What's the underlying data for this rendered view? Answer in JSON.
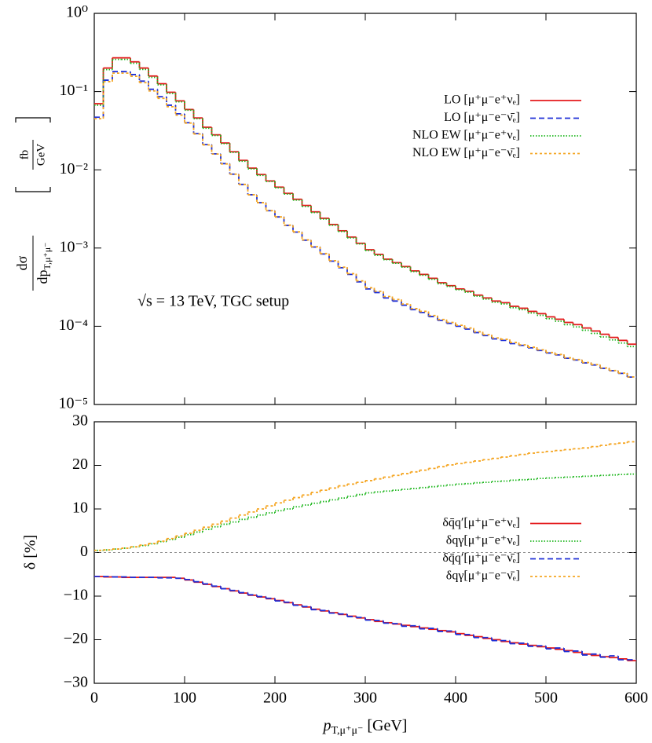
{
  "chart_data": [
    {
      "type": "histogram",
      "log_y": true,
      "ylabel": {
        "numerator": "dσ",
        "denominator": "dp",
        "subscript": "T,μ⁺μ⁻",
        "unit_numerator": "fb",
        "unit_denominator": "GeV"
      },
      "annotation": "√s = 13 TeV, TGC setup",
      "legend": "upper right",
      "xlim": [
        0,
        600
      ],
      "ylim": [
        1e-05,
        1
      ],
      "yticks": [
        {
          "value": 1e-05,
          "label": "10⁻⁵"
        },
        {
          "value": 0.0001,
          "label": "10⁻⁴"
        },
        {
          "value": 0.001,
          "label": "10⁻³"
        },
        {
          "value": 0.01,
          "label": "10⁻²"
        },
        {
          "value": 0.1,
          "label": "10⁻¹"
        },
        {
          "value": 1,
          "label": "10⁰"
        }
      ],
      "bins": [
        0,
        10,
        20,
        30,
        40,
        50,
        60,
        70,
        80,
        90,
        100,
        110,
        120,
        130,
        140,
        150,
        160,
        170,
        180,
        190,
        200,
        210,
        220,
        230,
        240,
        250,
        260,
        270,
        280,
        290,
        300,
        310,
        320,
        330,
        340,
        350,
        360,
        370,
        380,
        390,
        400,
        410,
        420,
        430,
        440,
        450,
        460,
        470,
        480,
        490,
        500,
        510,
        520,
        530,
        540,
        550,
        560,
        570,
        580,
        590,
        600
      ],
      "series": [
        {
          "name": "LO  [μ⁺μ⁻e⁺νₑ]",
          "color": "#e41a1c",
          "style": "solid",
          "values": [
            0.07,
            0.2,
            0.27,
            0.27,
            0.24,
            0.2,
            0.158,
            0.126,
            0.098,
            0.076,
            0.059,
            0.046,
            0.035,
            0.028,
            0.022,
            0.017,
            0.0132,
            0.0105,
            0.0087,
            0.0072,
            0.006,
            0.005,
            0.0042,
            0.0035,
            0.0029,
            0.0024,
            0.002,
            0.00166,
            0.00138,
            0.00115,
            0.00095,
            0.00083,
            0.00072,
            0.00065,
            0.00058,
            0.00051,
            0.00046,
            0.00041,
            0.00036,
            0.00033,
            0.0003,
            0.00028,
            0.00025,
            0.00023,
            0.00021,
            0.0002,
            0.00018,
            0.00017,
            0.000155,
            0.000145,
            0.000132,
            0.000123,
            0.000112,
            0.000105,
            9.5e-05,
            8.7e-05,
            7.9e-05,
            7.2e-05,
            6.6e-05,
            5.9e-05
          ]
        },
        {
          "name": "LO  [μ⁺μ⁻e⁻ν̄ₑ]",
          "color": "#1f2fd6",
          "style": "dashed",
          "values": [
            0.047,
            0.14,
            0.18,
            0.18,
            0.165,
            0.136,
            0.107,
            0.086,
            0.067,
            0.052,
            0.04,
            0.029,
            0.021,
            0.016,
            0.012,
            0.0088,
            0.0065,
            0.0048,
            0.0038,
            0.003,
            0.0025,
            0.00195,
            0.0016,
            0.00126,
            0.00103,
            0.00084,
            0.00068,
            0.00056,
            0.00046,
            0.00037,
            0.0003,
            0.00027,
            0.00023,
            0.00021,
            0.000186,
            0.000163,
            0.00015,
            0.000133,
            0.000119,
            0.000109,
            0.0001,
            9.2e-05,
            8.3e-05,
            7.6e-05,
            6.9e-05,
            6.6e-05,
            6e-05,
            5.7e-05,
            5.3e-05,
            4.9e-05,
            4.55e-05,
            4.3e-05,
            3.9e-05,
            3.7e-05,
            3.4e-05,
            3.2e-05,
            2.9e-05,
            2.7e-05,
            2.5e-05,
            2.24e-05
          ]
        },
        {
          "name": "NLO EW  [μ⁺μ⁻e⁺νₑ]",
          "color": "#22b822",
          "style": "dotted",
          "values": [
            0.067,
            0.191,
            0.258,
            0.258,
            0.23,
            0.192,
            0.152,
            0.122,
            0.095,
            0.074,
            0.058,
            0.045,
            0.034,
            0.0275,
            0.0216,
            0.0167,
            0.0129,
            0.0103,
            0.0085,
            0.0071,
            0.0059,
            0.0049,
            0.0041,
            0.0034,
            0.00284,
            0.00235,
            0.00196,
            0.00163,
            0.00135,
            0.00113,
            0.00093,
            0.00081,
            0.00071,
            0.00064,
            0.00057,
            0.0005,
            0.00045,
            0.0004,
            0.00035,
            0.000324,
            0.000293,
            0.000273,
            0.000243,
            0.000223,
            0.000203,
            0.000193,
            0.000173,
            0.000163,
            0.000148,
            0.000138,
            0.000125,
            0.000116,
            0.000105,
            9.8e-05,
            8.9e-05,
            8.1e-05,
            7.3e-05,
            6.7e-05,
            6.1e-05,
            5.5e-05
          ]
        },
        {
          "name": "NLO EW  [μ⁺μ⁻e⁻ν̄ₑ]",
          "color": "#f5a623",
          "style": "dotted-coarse",
          "values": [
            0.045,
            0.134,
            0.172,
            0.172,
            0.157,
            0.13,
            0.102,
            0.082,
            0.064,
            0.05,
            0.0396,
            0.0287,
            0.0208,
            0.0159,
            0.0119,
            0.0088,
            0.0065,
            0.0048,
            0.0038,
            0.003,
            0.0025,
            0.00196,
            0.00161,
            0.00127,
            0.00104,
            0.00085,
            0.00069,
            0.00057,
            0.00047,
            0.00038,
            0.00031,
            0.00028,
            0.00024,
            0.00022,
            0.000192,
            0.000168,
            0.000155,
            0.000137,
            0.000122,
            0.000112,
            0.000103,
            9.5e-05,
            8.5e-05,
            7.8e-05,
            7.1e-05,
            6.8e-05,
            6.2e-05,
            5.8e-05,
            5.4e-05,
            5e-05,
            4.62e-05,
            4.36e-05,
            3.95e-05,
            3.75e-05,
            3.44e-05,
            3.23e-05,
            2.93e-05,
            2.72e-05,
            2.52e-05,
            2.25e-05
          ]
        }
      ]
    },
    {
      "type": "histogram",
      "log_y": false,
      "ylabel": "δ [%]",
      "xlabel": {
        "symbol": "p",
        "subscript": "T,μ⁺μ⁻",
        "unit": " [GeV]"
      },
      "legend": "center right",
      "zero_line": true,
      "xlim": [
        0,
        600
      ],
      "xticks": [
        0,
        100,
        200,
        300,
        400,
        500,
        600
      ],
      "ylim": [
        -30,
        30
      ],
      "yticks": [
        {
          "value": -30,
          "label": "−30"
        },
        {
          "value": -20,
          "label": "−20"
        },
        {
          "value": -10,
          "label": "−10"
        },
        0,
        10,
        20,
        30
      ],
      "bins": [
        0,
        10,
        20,
        30,
        40,
        50,
        60,
        70,
        80,
        90,
        100,
        110,
        120,
        130,
        140,
        150,
        160,
        170,
        180,
        190,
        200,
        210,
        220,
        230,
        240,
        250,
        260,
        270,
        280,
        290,
        300,
        310,
        320,
        330,
        340,
        350,
        360,
        370,
        380,
        390,
        400,
        410,
        420,
        430,
        440,
        450,
        460,
        470,
        480,
        490,
        500,
        510,
        520,
        530,
        540,
        550,
        560,
        570,
        580,
        590,
        600
      ],
      "series": [
        {
          "name": "δq̄q′[μ⁺μ⁻e⁺νₑ]",
          "color": "#e41a1c",
          "style": "solid",
          "values": [
            -5.5,
            -5.6,
            -5.6,
            -5.7,
            -5.7,
            -5.7,
            -5.7,
            -5.7,
            -5.7,
            -5.9,
            -6.3,
            -6.8,
            -7.3,
            -7.8,
            -8.3,
            -8.8,
            -9.3,
            -9.8,
            -10.2,
            -10.6,
            -11.0,
            -11.5,
            -12.0,
            -12.5,
            -13.0,
            -13.4,
            -13.8,
            -14.2,
            -14.6,
            -15.0,
            -15.4,
            -15.8,
            -16.1,
            -16.4,
            -16.7,
            -17.0,
            -17.3,
            -17.6,
            -17.9,
            -18.2,
            -18.6,
            -19.0,
            -19.3,
            -19.7,
            -20.0,
            -20.4,
            -20.7,
            -21.0,
            -21.3,
            -21.6,
            -21.9,
            -22.2,
            -22.5,
            -22.9,
            -23.3,
            -23.6,
            -23.9,
            -24.1,
            -24.4,
            -24.8
          ]
        },
        {
          "name": "δqγ[μ⁺μ⁻e⁺νₑ]",
          "color": "#22b822",
          "style": "dotted",
          "values": [
            0.5,
            0.6,
            0.8,
            1.0,
            1.3,
            1.6,
            2.0,
            2.5,
            3.0,
            3.5,
            4.1,
            4.7,
            5.3,
            5.9,
            6.5,
            7.0,
            7.6,
            8.1,
            8.6,
            9.1,
            9.6,
            10.0,
            10.5,
            10.9,
            11.3,
            11.7,
            12.1,
            12.5,
            12.9,
            13.3,
            13.7,
            13.9,
            14.1,
            14.3,
            14.5,
            14.7,
            14.9,
            15.1,
            15.3,
            15.5,
            15.7,
            15.8,
            16.0,
            16.1,
            16.3,
            16.4,
            16.6,
            16.7,
            16.8,
            17.0,
            17.1,
            17.2,
            17.3,
            17.4,
            17.5,
            17.6,
            17.7,
            17.8,
            17.9,
            18.0
          ]
        },
        {
          "name": "δq̄q′[μ⁺μ⁻e⁻ν̄ₑ]",
          "color": "#1f2fd6",
          "style": "dashed",
          "values": [
            -5.5,
            -5.5,
            -5.6,
            -5.6,
            -5.7,
            -5.7,
            -5.7,
            -5.8,
            -5.8,
            -5.9,
            -6.2,
            -6.7,
            -7.2,
            -7.7,
            -8.3,
            -8.7,
            -9.2,
            -9.7,
            -10.1,
            -10.5,
            -11.1,
            -11.4,
            -12.1,
            -12.4,
            -13.1,
            -13.3,
            -13.9,
            -14.1,
            -14.7,
            -14.9,
            -15.5,
            -15.6,
            -16.2,
            -16.3,
            -16.9,
            -16.8,
            -17.5,
            -17.4,
            -18.1,
            -18.0,
            -18.8,
            -18.8,
            -19.5,
            -19.5,
            -20.2,
            -20.2,
            -20.9,
            -20.8,
            -21.5,
            -21.4,
            -22.1,
            -21.9,
            -22.7,
            -22.6,
            -23.5,
            -23.3,
            -24.0,
            -23.7,
            -24.6,
            -24.6
          ]
        },
        {
          "name": "δqγ[μ⁺μ⁻e⁻ν̄ₑ]",
          "color": "#f5a623",
          "style": "dotted-coarse",
          "values": [
            0.5,
            0.6,
            0.8,
            1.0,
            1.3,
            1.7,
            2.1,
            2.6,
            3.2,
            3.8,
            4.4,
            5.1,
            5.8,
            6.5,
            7.2,
            7.9,
            8.6,
            9.3,
            10.0,
            10.7,
            11.4,
            12.0,
            12.6,
            13.2,
            13.8,
            14.3,
            14.8,
            15.3,
            15.7,
            16.1,
            16.5,
            16.9,
            17.3,
            17.7,
            18.1,
            18.5,
            18.9,
            19.3,
            19.7,
            20.1,
            20.4,
            20.7,
            21.0,
            21.3,
            21.6,
            21.9,
            22.2,
            22.5,
            22.8,
            23.0,
            23.2,
            23.4,
            23.6,
            23.8,
            24.0,
            24.3,
            24.6,
            24.9,
            25.1,
            25.4
          ]
        }
      ]
    }
  ]
}
